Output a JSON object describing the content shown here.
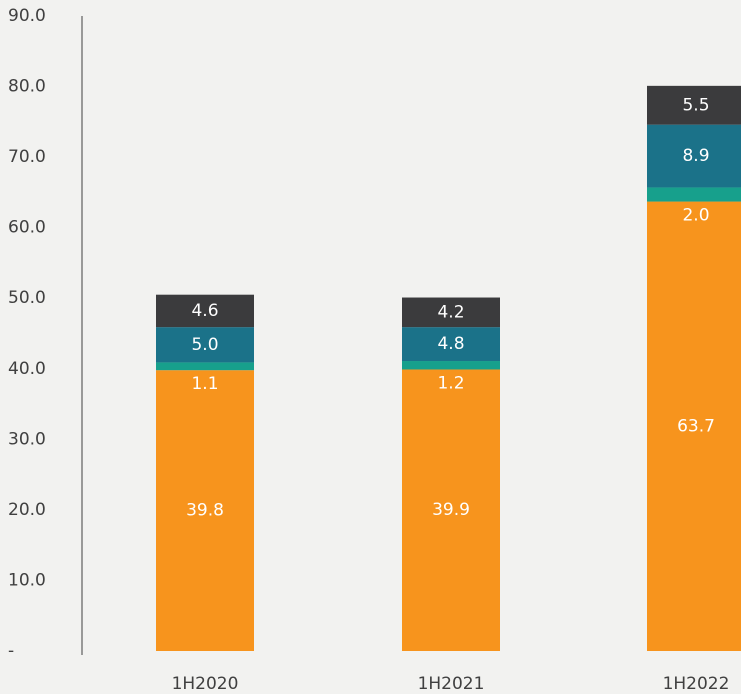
{
  "chart_data": {
    "type": "stacked_bar",
    "categories": [
      "1H2020",
      "1H2021",
      "1H2022"
    ],
    "series": [
      {
        "color": "#f7941d",
        "values": [
          39.8,
          39.9,
          63.7
        ]
      },
      {
        "color": "#17a08c",
        "values": [
          1.1,
          1.2,
          2.0
        ],
        "value_labels": [
          "1.1",
          "1.2",
          "2.0"
        ]
      },
      {
        "color": "#1b7289",
        "values": [
          5.0,
          4.8,
          8.9
        ],
        "value_labels": [
          "5.0",
          "4.8",
          "8.9"
        ]
      },
      {
        "color": "#3b3b3d",
        "values": [
          4.6,
          4.2,
          5.5
        ]
      }
    ],
    "ylim": [
      0,
      90
    ],
    "yticks": [
      {
        "value": 0,
        "label": "-"
      },
      {
        "value": 10,
        "label": "10.0"
      },
      {
        "value": 20,
        "label": "20.0"
      },
      {
        "value": 30,
        "label": "30.0"
      },
      {
        "value": 40,
        "label": "40.0"
      },
      {
        "value": 50,
        "label": "50.0"
      },
      {
        "value": 60,
        "label": "60.0"
      },
      {
        "value": 70,
        "label": "70.0"
      },
      {
        "value": 80,
        "label": "80.0"
      },
      {
        "value": 90,
        "label": "90.0"
      }
    ]
  }
}
